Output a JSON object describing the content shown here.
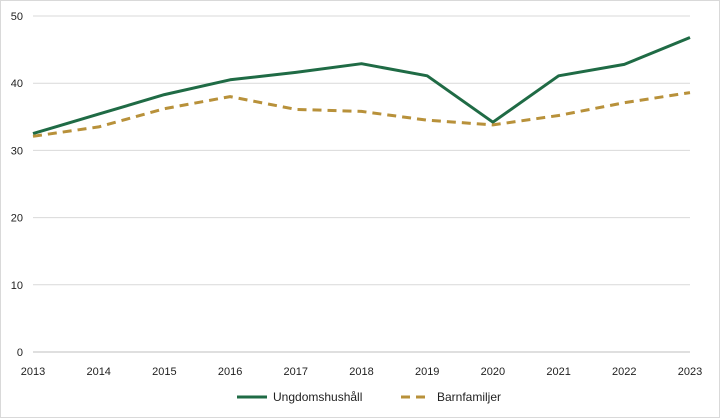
{
  "chart_data": {
    "type": "line",
    "title": "",
    "xlabel": "",
    "ylabel": "",
    "x": [
      "2013",
      "2014",
      "2015",
      "2016",
      "2017",
      "2018",
      "2019",
      "2020",
      "2021",
      "2022",
      "2023"
    ],
    "ylim": [
      0,
      50
    ],
    "yticks": [
      0,
      10,
      20,
      30,
      40,
      50
    ],
    "grid": true,
    "legend_position": "bottom",
    "series": [
      {
        "name": "Ungdomshushåll",
        "color": "#1f6b45",
        "style": "solid",
        "values": [
          32.5,
          35.4,
          38.3,
          40.5,
          41.6,
          42.9,
          41.1,
          34.2,
          41.1,
          42.8,
          46.8
        ]
      },
      {
        "name": "Barnfamiljer",
        "color": "#b8913a",
        "style": "dashed",
        "values": [
          32.1,
          33.5,
          36.2,
          38.0,
          36.1,
          35.8,
          34.5,
          33.8,
          35.2,
          37.1,
          38.6
        ]
      }
    ]
  }
}
